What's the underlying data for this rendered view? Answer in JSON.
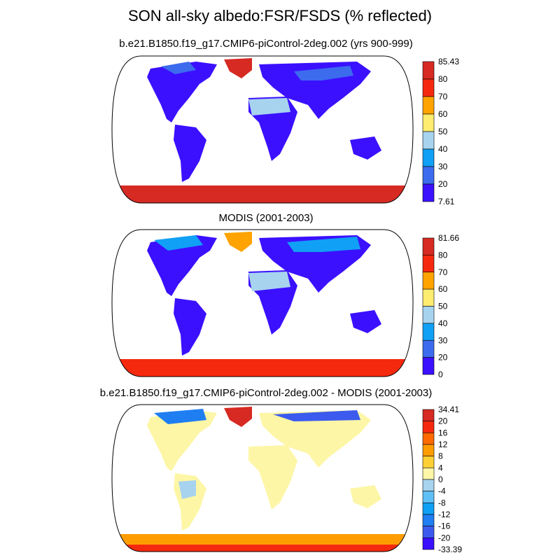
{
  "title": "SON all-sky albedo:FSR/FSDS (% reflected)",
  "panels": [
    {
      "id": "model",
      "title": "b.e21.B1850.f19_g17.CMIP6-piControl-2deg.002 (yrs 900-999)",
      "colorbar": {
        "labels": [
          "85.43",
          "80",
          "70",
          "60",
          "50",
          "40",
          "30",
          "20",
          "7.61"
        ],
        "colors": [
          "#d62a23",
          "#f5290e",
          "#ffa300",
          "#fdec6e",
          "#a7d3ef",
          "#10a0f5",
          "#3c6bee",
          "#3b10ff"
        ]
      }
    },
    {
      "id": "obs",
      "title": "MODIS (2001-2003)",
      "colorbar": {
        "labels": [
          "81.66",
          "80",
          "70",
          "60",
          "50",
          "40",
          "30",
          "20",
          "0"
        ],
        "colors": [
          "#d62a23",
          "#f5290e",
          "#ffa300",
          "#fdec6e",
          "#a7d3ef",
          "#10a0f5",
          "#3c6bee",
          "#3b10ff"
        ]
      }
    },
    {
      "id": "diff",
      "title": "b.e21.B1850.f19_g17.CMIP6-piControl-2deg.002 - MODIS (2001-2003)",
      "colorbar": {
        "labels": [
          "34.41",
          "20",
          "16",
          "12",
          "8",
          "4",
          "0",
          "-4",
          "-8",
          "-12",
          "-16",
          "-20",
          "-33.39"
        ],
        "colors": [
          "#d62a23",
          "#f5290e",
          "#ff6a00",
          "#ff9d00",
          "#ffd035",
          "#fdf6a6",
          "#a7d3ef",
          "#5fc0f5",
          "#10a0f5",
          "#1f7ef2",
          "#3c5bee",
          "#3b10ff"
        ]
      }
    }
  ]
}
